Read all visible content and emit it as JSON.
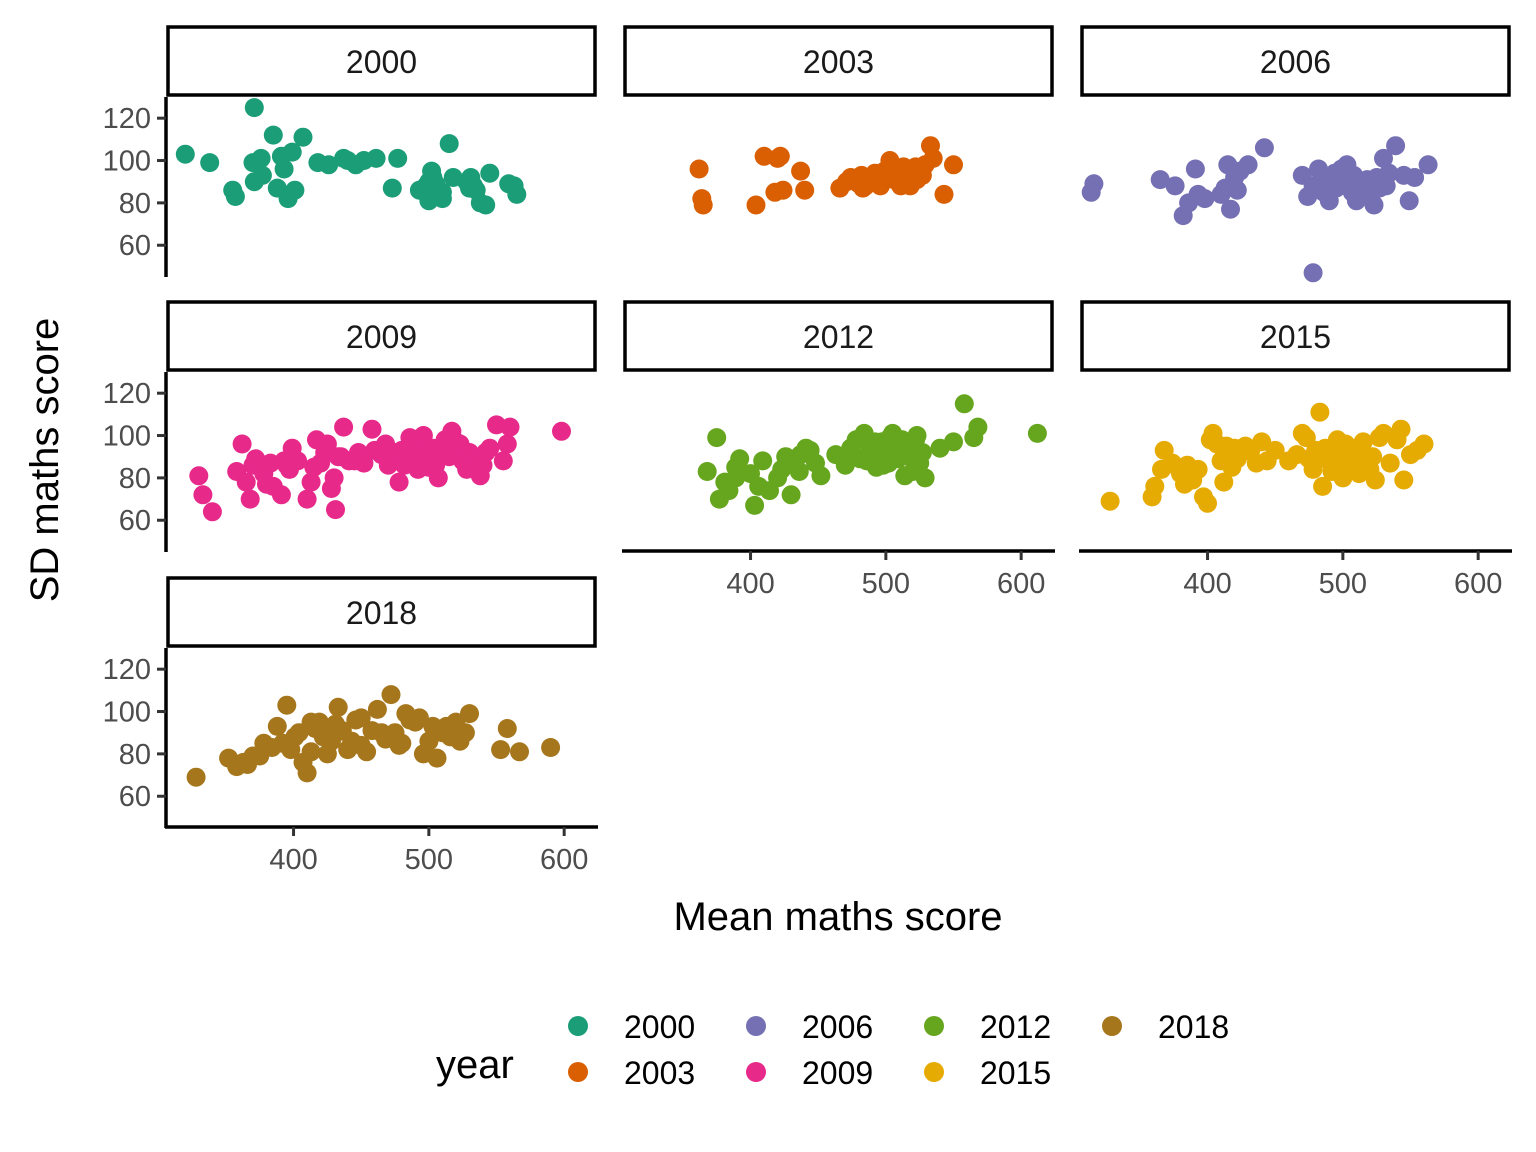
{
  "chart_data": {
    "type": "scatter",
    "facet_by": "year",
    "xlabel": "Mean maths score",
    "ylabel": "SD maths score",
    "xlim": [
      305,
      625
    ],
    "ylim": [
      45,
      130
    ],
    "xticks": [
      400,
      500,
      600
    ],
    "yticks": [
      60,
      80,
      100,
      120
    ],
    "legend": {
      "title": "year",
      "position": "bottom"
    },
    "series": [
      {
        "name": "2000",
        "color": "#1b9e77",
        "x": [
          320,
          338,
          357,
          376,
          377,
          385,
          391,
          396,
          399,
          401,
          407,
          418,
          426,
          437,
          440,
          446,
          452,
          461,
          477,
          515,
          559,
          531,
          533,
          528,
          510,
          500,
          502,
          503,
          498,
          493,
          500,
          473,
          505,
          530,
          538,
          542,
          355,
          388,
          370,
          371,
          371,
          393,
          510,
          518,
          565,
          535,
          563,
          545
        ],
        "y": [
          103,
          99,
          83,
          101,
          93,
          112,
          102,
          82,
          104,
          86,
          111,
          99,
          98,
          101,
          100,
          98,
          100,
          101,
          101,
          108,
          89,
          92,
          88,
          90,
          85,
          81,
          95,
          92,
          88,
          86,
          90,
          87,
          89,
          87,
          80,
          79,
          86,
          87,
          99,
          90,
          125,
          96,
          82,
          92,
          84,
          86,
          88,
          94
        ]
      },
      {
        "name": "2003",
        "color": "#d95f02",
        "x": [
          362,
          364,
          365,
          404,
          410,
          418,
          420,
          422,
          424,
          437,
          440,
          466,
          474,
          480,
          481,
          482,
          483,
          485,
          486,
          490,
          492,
          494,
          496,
          497,
          499,
          503,
          505,
          506,
          510,
          511,
          513,
          516,
          518,
          522,
          523,
          527,
          529,
          533,
          535,
          543,
          550,
          488,
          471
        ],
        "y": [
          96,
          82,
          79,
          79,
          102,
          85,
          101,
          102,
          86,
          95,
          86,
          87,
          92,
          89,
          92,
          93,
          87,
          88,
          90,
          91,
          94,
          90,
          88,
          92,
          95,
          100,
          96,
          91,
          93,
          88,
          97,
          92,
          88,
          97,
          91,
          93,
          98,
          107,
          101,
          84,
          98,
          92,
          90
        ],
        "x_pad": []
      },
      {
        "name": "2006",
        "color": "#7570b3",
        "x": [
          314,
          316,
          365,
          376,
          382,
          386,
          391,
          393,
          398,
          410,
          413,
          415,
          417,
          420,
          422,
          424,
          430,
          442,
          470,
          474,
          478,
          480,
          482,
          484,
          486,
          487,
          489,
          490,
          492,
          494,
          495,
          497,
          499,
          500,
          503,
          505,
          507,
          508,
          510,
          515,
          518,
          520,
          522,
          523,
          525,
          527,
          530,
          534,
          539,
          545,
          549,
          553,
          563,
          478,
          532
        ],
        "y": [
          85,
          89,
          91,
          88,
          74,
          80,
          96,
          84,
          82,
          84,
          87,
          98,
          77,
          92,
          86,
          95,
          98,
          106,
          93,
          83,
          88,
          87,
          96,
          90,
          85,
          92,
          89,
          81,
          92,
          94,
          87,
          88,
          96,
          92,
          98,
          90,
          85,
          93,
          81,
          85,
          91,
          88,
          86,
          79,
          92,
          87,
          101,
          94,
          107,
          93,
          81,
          92,
          98,
          47,
          88
        ]
      },
      {
        "name": "2009",
        "color": "#e7298a",
        "x": [
          330,
          333,
          340,
          358,
          362,
          365,
          368,
          370,
          372,
          378,
          380,
          383,
          385,
          391,
          393,
          395,
          397,
          399,
          403,
          410,
          413,
          415,
          417,
          420,
          423,
          425,
          428,
          430,
          431,
          433,
          435,
          437,
          441,
          445,
          448,
          452,
          458,
          460,
          465,
          468,
          470,
          472,
          475,
          478,
          480,
          482,
          484,
          486,
          488,
          490,
          492,
          494,
          496,
          498,
          500,
          503,
          505,
          507,
          510,
          512,
          515,
          517,
          520,
          523,
          525,
          528,
          530,
          533,
          535,
          538,
          540,
          542,
          545,
          550,
          555,
          558,
          560,
          598
        ],
        "y": [
          81,
          72,
          64,
          83,
          96,
          78,
          70,
          86,
          89,
          82,
          77,
          87,
          76,
          72,
          88,
          86,
          84,
          94,
          88,
          70,
          78,
          85,
          98,
          87,
          92,
          96,
          75,
          80,
          65,
          90,
          90,
          104,
          88,
          88,
          92,
          87,
          103,
          93,
          91,
          96,
          86,
          89,
          92,
          78,
          93,
          86,
          88,
          99,
          95,
          92,
          84,
          97,
          100,
          88,
          85,
          94,
          86,
          80,
          91,
          98,
          90,
          102,
          97,
          96,
          88,
          84,
          92,
          88,
          89,
          81,
          86,
          92,
          94,
          105,
          88,
          96,
          104,
          102
        ]
      },
      {
        "name": "2012",
        "color": "#66a61e",
        "x": [
          368,
          375,
          377,
          381,
          384,
          389,
          392,
          400,
          403,
          406,
          409,
          414,
          420,
          423,
          426,
          430,
          433,
          437,
          441,
          444,
          448,
          452,
          463,
          470,
          474,
          478,
          481,
          484,
          486,
          488,
          490,
          492,
          493,
          495,
          497,
          498,
          500,
          502,
          503,
          505,
          507,
          509,
          511,
          512,
          514,
          516,
          518,
          520,
          522,
          523,
          525,
          527,
          529,
          540,
          550,
          558,
          565,
          568,
          612,
          389,
          436
        ],
        "y": [
          83,
          99,
          70,
          78,
          74,
          80,
          89,
          82,
          67,
          76,
          88,
          74,
          80,
          84,
          90,
          72,
          89,
          91,
          94,
          93,
          87,
          81,
          91,
          86,
          94,
          98,
          89,
          101,
          88,
          93,
          90,
          97,
          85,
          92,
          97,
          86,
          91,
          87,
          99,
          101,
          92,
          89,
          93,
          98,
          81,
          95,
          90,
          83,
          98,
          100,
          87,
          92,
          80,
          94,
          97,
          115,
          99,
          104,
          101,
          85,
          83
        ]
      },
      {
        "name": "2015",
        "color": "#e6ab02",
        "x": [
          328,
          359,
          361,
          366,
          368,
          374,
          378,
          380,
          383,
          385,
          389,
          393,
          397,
          400,
          402,
          404,
          407,
          410,
          412,
          414,
          416,
          418,
          420,
          422,
          425,
          428,
          432,
          436,
          440,
          444,
          450,
          460,
          466,
          470,
          473,
          475,
          478,
          480,
          483,
          485,
          487,
          488,
          490,
          492,
          494,
          496,
          498,
          500,
          502,
          504,
          506,
          508,
          510,
          512,
          515,
          518,
          520,
          522,
          524,
          527,
          530,
          535,
          540,
          543,
          545,
          550,
          555,
          560,
          478
        ],
        "y": [
          69,
          71,
          76,
          84,
          93,
          87,
          85,
          82,
          77,
          86,
          79,
          84,
          71,
          68,
          98,
          101,
          96,
          88,
          78,
          95,
          91,
          85,
          94,
          89,
          92,
          95,
          93,
          87,
          97,
          88,
          93,
          88,
          91,
          101,
          99,
          89,
          87,
          93,
          111,
          76,
          94,
          90,
          88,
          83,
          92,
          98,
          86,
          80,
          96,
          91,
          87,
          94,
          92,
          82,
          97,
          89,
          84,
          90,
          79,
          99,
          101,
          87,
          98,
          103,
          79,
          91,
          93,
          96,
          84
        ]
      },
      {
        "name": "2018",
        "color": "#a6761d",
        "x": [
          328,
          352,
          358,
          363,
          366,
          370,
          375,
          378,
          384,
          388,
          392,
          395,
          398,
          401,
          404,
          407,
          410,
          413,
          416,
          419,
          422,
          425,
          428,
          431,
          433,
          436,
          440,
          443,
          446,
          450,
          454,
          458,
          462,
          465,
          468,
          472,
          475,
          478,
          480,
          483,
          486,
          490,
          493,
          496,
          500,
          503,
          506,
          510,
          513,
          516,
          520,
          523,
          527,
          530,
          553,
          558,
          567,
          590,
          413,
          430,
          450
        ],
        "y": [
          69,
          78,
          74,
          76,
          75,
          79,
          79,
          85,
          83,
          93,
          85,
          103,
          82,
          88,
          90,
          76,
          71,
          81,
          92,
          95,
          88,
          80,
          86,
          94,
          102,
          91,
          82,
          86,
          96,
          97,
          81,
          91,
          101,
          90,
          87,
          108,
          90,
          84,
          85,
          99,
          96,
          95,
          97,
          80,
          86,
          93,
          78,
          90,
          93,
          88,
          95,
          86,
          90,
          99,
          82,
          92,
          81,
          83,
          95,
          89,
          84
        ]
      }
    ]
  }
}
